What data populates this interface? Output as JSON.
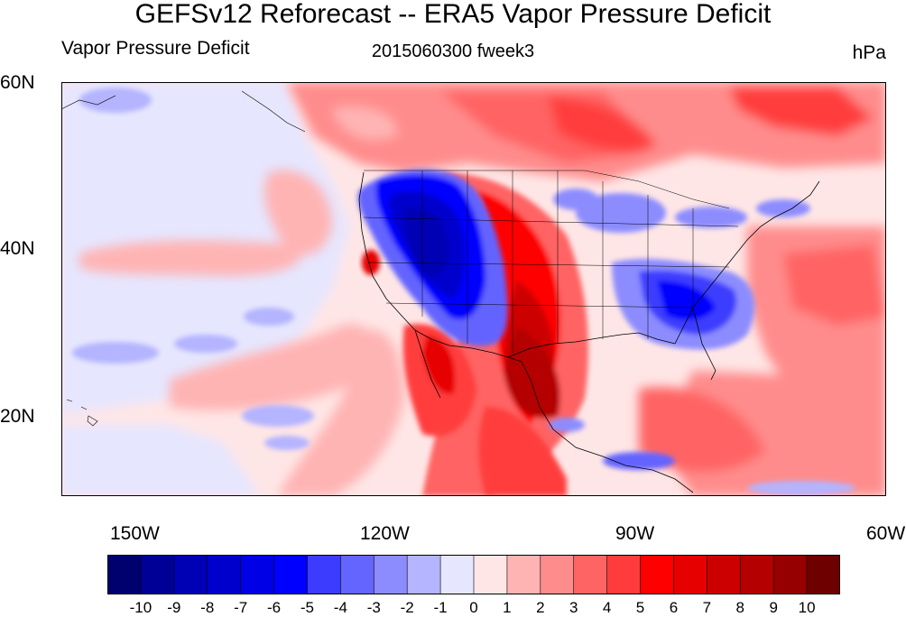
{
  "title": "GEFSv12 Reforecast -- ERA5 Vapor Pressure Deficit",
  "subtitles": {
    "left": "Vapor Pressure Deficit",
    "center": "2015060300 fweek3",
    "right": "hPa"
  },
  "map": {
    "region": "Contiguous United States, Mexico, eastern Pacific",
    "lat_range": [
      10,
      60
    ],
    "lon_range": [
      -160,
      -60
    ],
    "lat_labels": [
      "60N",
      "40N",
      "20N"
    ],
    "lon_labels": [
      "150W",
      "120W",
      "90W",
      "60W"
    ],
    "field": "vapor pressure deficit difference",
    "units": "hPa"
  },
  "colorbar": {
    "labels": [
      "-10",
      "-9",
      "-8",
      "-7",
      "-6",
      "-5",
      "-4",
      "-3",
      "-2",
      "-1",
      "0",
      "1",
      "2",
      "3",
      "4",
      "5",
      "6",
      "7",
      "8",
      "9",
      "10"
    ],
    "colors": [
      "#00006e",
      "#000096",
      "#0000b4",
      "#0000cd",
      "#0000e6",
      "#0000ff",
      "#3c3cff",
      "#6464ff",
      "#8c8cff",
      "#b4b4ff",
      "#e6e6ff",
      "#ffe6e6",
      "#ffb4b4",
      "#ff8c8c",
      "#ff6464",
      "#ff3c3c",
      "#ff0000",
      "#e60000",
      "#cd0000",
      "#b40000",
      "#960000",
      "#6e0000"
    ]
  }
}
